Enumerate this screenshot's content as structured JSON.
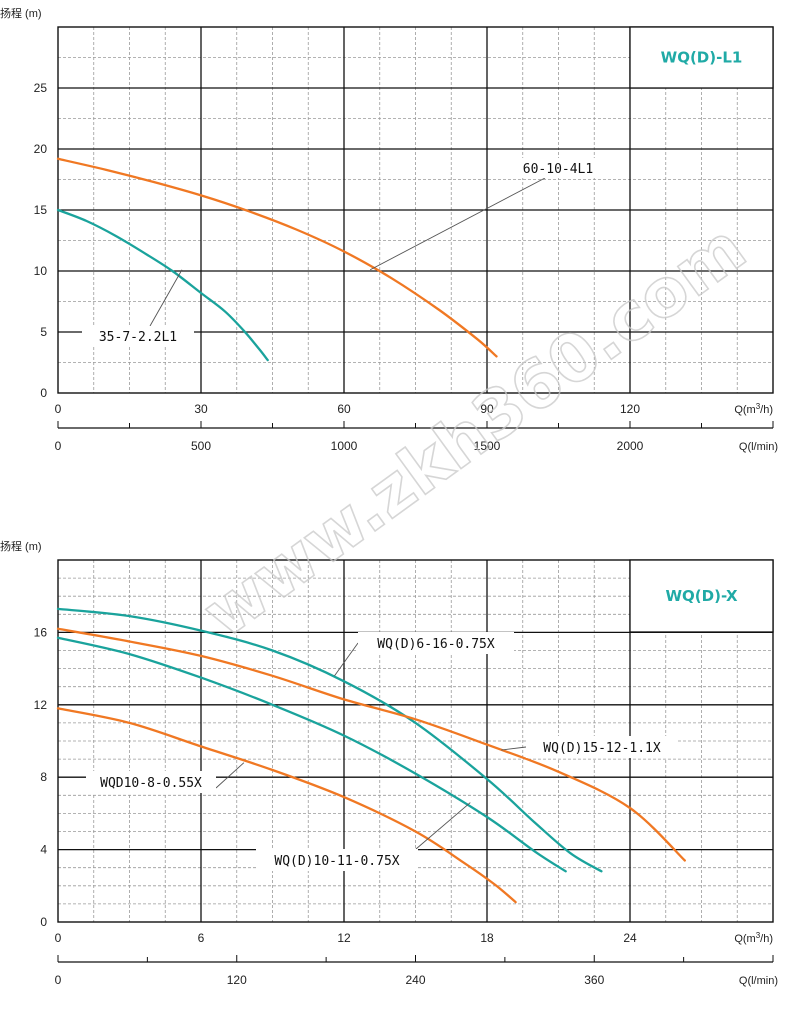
{
  "watermark": "www.zkh360.com",
  "colors": {
    "teal": "#1aa39c",
    "orange": "#f07823",
    "title": "#20aaa6",
    "grid": "#111111",
    "minor": "#9a9a9a"
  },
  "chart_data": [
    {
      "type": "line",
      "title": "WQ(D)-L1",
      "ylabel": "扬程 (m)",
      "xlabel": "Q(m³/h)",
      "xlabel_base": "Q(m",
      "xlabel_sup": "3",
      "xlabel_end": "/h)",
      "xlabel2": "Q(l/min)",
      "xlim": [
        0,
        150
      ],
      "ylim": [
        0,
        30
      ],
      "x_ticks": [
        "0",
        "30",
        "60",
        "90",
        "120"
      ],
      "y_ticks": [
        "0",
        "5",
        "10",
        "15",
        "20",
        "25"
      ],
      "x2_ticks": [
        "0",
        "500",
        "1000",
        "1500",
        "2000"
      ],
      "grid": true,
      "legend": "none",
      "series": [
        {
          "name": "35-7-2.2L1",
          "color": "#1aa39c",
          "x": [
            0,
            6,
            12,
            18,
            24,
            30,
            35,
            39,
            42,
            44
          ],
          "y": [
            15,
            14.1,
            12.9,
            11.5,
            10,
            8.2,
            6.7,
            5.1,
            3.7,
            2.7
          ]
        },
        {
          "name": "60-10-4L1",
          "color": "#f07823",
          "x": [
            0,
            10,
            20,
            30,
            40,
            50,
            60,
            70,
            80,
            88,
            92
          ],
          "y": [
            19.2,
            18.3,
            17.3,
            16.2,
            14.9,
            13.4,
            11.6,
            9.4,
            6.8,
            4.4,
            3.0
          ]
        }
      ],
      "annotations": [
        {
          "text": "35-7-2.2L1",
          "target_x": 26,
          "target_y": 10.1
        },
        {
          "text": "60-10-4L1",
          "target_x": 65.5,
          "target_y": 10.1
        }
      ]
    },
    {
      "type": "line",
      "title": "WQ(D)-X",
      "ylabel": "扬程 (m)",
      "xlabel": "Q(m³/h)",
      "xlabel_base": "Q(m",
      "xlabel_sup": "3",
      "xlabel_end": "/h)",
      "xlabel2": "Q(l/min)",
      "xlim": [
        0,
        30
      ],
      "ylim": [
        0,
        20
      ],
      "x_ticks": [
        "0",
        "6",
        "12",
        "18",
        "24"
      ],
      "y_ticks": [
        "0",
        "4",
        "8",
        "12",
        "16"
      ],
      "x2_ticks": [
        "0",
        "120",
        "240",
        "360"
      ],
      "grid": true,
      "legend": "none",
      "series": [
        {
          "name": "WQ(D)6-16-0.75X",
          "color": "#1aa39c",
          "x": [
            0,
            3,
            6,
            9,
            12,
            15,
            18,
            20,
            21.5,
            22.8
          ],
          "y": [
            17.3,
            16.9,
            16.1,
            15.0,
            13.3,
            11.0,
            7.9,
            5.5,
            3.8,
            2.8
          ]
        },
        {
          "name": "WQ(D)15-12-1.1X",
          "color": "#f07823",
          "x": [
            0,
            3,
            6,
            9,
            12,
            15,
            18,
            21,
            24,
            26.3
          ],
          "y": [
            16.2,
            15.5,
            14.7,
            13.6,
            12.3,
            11.2,
            9.8,
            8.3,
            6.3,
            3.4
          ]
        },
        {
          "name": "WQ(D)10-11-0.75X",
          "color": "#1aa39c",
          "x": [
            0,
            3,
            6,
            9,
            12,
            15,
            18,
            20,
            21.3
          ],
          "y": [
            15.7,
            14.8,
            13.5,
            12.0,
            10.3,
            8.2,
            5.8,
            3.9,
            2.8
          ]
        },
        {
          "name": "WQD10-8-0.55X",
          "color": "#f07823",
          "x": [
            0,
            3,
            6,
            9,
            12,
            15,
            17,
            18.3,
            19.2
          ],
          "y": [
            11.8,
            11.0,
            9.7,
            8.4,
            6.9,
            5.0,
            3.3,
            2.1,
            1.1
          ]
        }
      ],
      "annotations": [
        {
          "text": "WQ(D)6-16-0.75X",
          "target_x": 11.6,
          "target_y": 13.6
        },
        {
          "text": "WQ(D)15-12-1.1X",
          "target_x": 18.6,
          "target_y": 9.5
        },
        {
          "text": "WQD10-8-0.55X",
          "target_x": 7.8,
          "target_y": 8.8
        },
        {
          "text": "WQ(D)10-11-0.75X",
          "target_x": 17.3,
          "target_y": 6.6
        }
      ]
    }
  ]
}
